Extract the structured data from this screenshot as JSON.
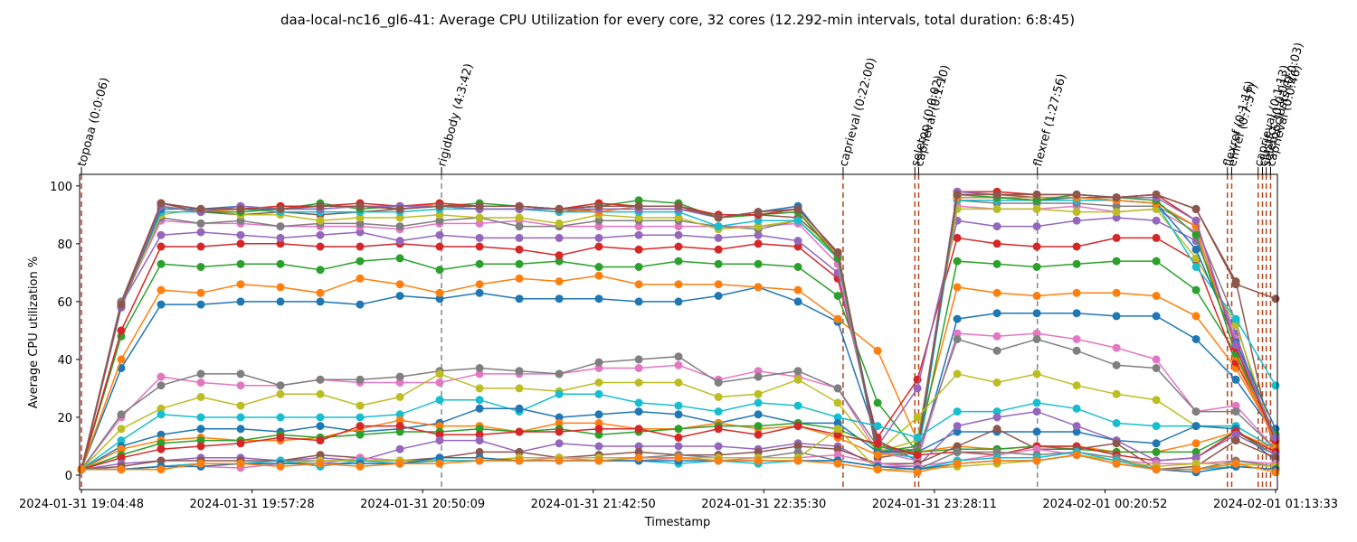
{
  "chart_data": {
    "type": "line",
    "title": "daa-local-nc16_gl6-41: Average CPU Utilization for every core, 32 cores (12.292-min intervals, total duration: 6:8:45)",
    "xlabel": "Timestamp",
    "ylabel": "Average CPU utilization %",
    "ylim": [
      -5,
      104
    ],
    "y_ticks": [
      0,
      20,
      40,
      60,
      80,
      100
    ],
    "x_ticks": [
      "2024-01-31 19:04:48",
      "2024-01-31 19:57:28",
      "2024-01-31 20:50:09",
      "2024-01-31 21:42:50",
      "2024-01-31 22:35:30",
      "2024-01-31 23:28:11",
      "2024-02-01 00:20:52",
      "2024-02-01 01:13:33"
    ],
    "grid": false,
    "legend": "none",
    "x": [
      "19:04:48",
      "19:17:06",
      "19:29:23",
      "19:41:41",
      "19:53:58",
      "20:06:16",
      "20:18:33",
      "20:30:51",
      "20:43:09",
      "20:55:26",
      "21:07:44",
      "21:20:01",
      "21:32:19",
      "21:44:36",
      "21:56:54",
      "22:09:11",
      "22:21:29",
      "22:33:47",
      "22:46:04",
      "22:58:22",
      "23:10:39",
      "23:22:57",
      "23:35:14",
      "23:47:32",
      "23:59:49",
      "00:12:07",
      "00:24:25",
      "00:36:42",
      "00:49:00",
      "01:01:17",
      "01:13:33"
    ],
    "annotations": [
      {
        "label": "topoaa (0:0:06)",
        "x": "19:04:48",
        "line_color": "#c0392b"
      },
      {
        "label": "rigidbody (4:3:42)",
        "x": "20:56:00",
        "line_color": "#7f8c8d"
      },
      {
        "label": "caprieval (0:22:00)",
        "x": "23:00:00",
        "line_color": "#b5451b"
      },
      {
        "label": "seletop (0:0:02)",
        "x": "23:22:10",
        "line_color": "#b5451b"
      },
      {
        "label": "caprieval (0:1:10)",
        "x": "23:23:20",
        "line_color": "#b5451b"
      },
      {
        "label": "flexref (1:27:56)",
        "x": "00:00:00",
        "line_color": "#7f8c8d"
      },
      {
        "label": "flexref (0:1:16)",
        "x": "00:58:40",
        "line_color": "#b5451b"
      },
      {
        "label": "emref (0:7:57)",
        "x": "01:00:00",
        "line_color": "#b5451b"
      },
      {
        "label": "caprieval (0:1:13)",
        "x": "01:08:10",
        "line_color": "#b5451b"
      },
      {
        "label": "clustfcc (0:0:01)",
        "x": "01:09:30",
        "line_color": "#b5451b"
      },
      {
        "label": "seletopclusts (0:0:03)",
        "x": "01:10:40",
        "line_color": "#b5451b"
      },
      {
        "label": "caprieval (0:0:46)",
        "x": "01:12:00",
        "line_color": "#b5451b"
      }
    ],
    "series": [
      {
        "color": "#1f77b4",
        "values": [
          2,
          37,
          59,
          59,
          60,
          60,
          60,
          59,
          62,
          61,
          63,
          61,
          61,
          61,
          60,
          60,
          62,
          65,
          60,
          53,
          12,
          5,
          54,
          56,
          56,
          56,
          55,
          55,
          47,
          33,
          14
        ]
      },
      {
        "color": "#ff7f0e",
        "values": [
          2,
          40,
          64,
          63,
          66,
          65,
          63,
          68,
          66,
          63,
          66,
          68,
          67,
          69,
          66,
          66,
          66,
          65,
          64,
          54,
          43,
          12,
          65,
          63,
          62,
          63,
          63,
          62,
          55,
          37,
          13
        ]
      },
      {
        "color": "#2ca02c",
        "values": [
          2,
          48,
          73,
          72,
          73,
          73,
          71,
          74,
          75,
          71,
          73,
          73,
          74,
          72,
          72,
          74,
          73,
          73,
          72,
          62,
          25,
          8,
          74,
          73,
          72,
          73,
          74,
          74,
          64,
          42,
          11
        ]
      },
      {
        "color": "#d62728",
        "values": [
          2,
          50,
          79,
          79,
          80,
          80,
          79,
          79,
          80,
          79,
          79,
          78,
          76,
          79,
          78,
          79,
          78,
          80,
          79,
          68,
          13,
          33,
          82,
          80,
          79,
          79,
          82,
          82,
          74,
          39,
          13
        ]
      },
      {
        "color": "#9467bd",
        "values": [
          2,
          59,
          83,
          84,
          83,
          82,
          83,
          84,
          81,
          83,
          82,
          82,
          82,
          82,
          83,
          83,
          82,
          83,
          81,
          70,
          10,
          30,
          88,
          86,
          86,
          88,
          89,
          88,
          81,
          49,
          9
        ]
      },
      {
        "color": "#8c564b",
        "values": [
          2,
          60,
          94,
          91,
          90,
          91,
          90,
          91,
          92,
          93,
          92,
          92,
          91,
          92,
          92,
          92,
          90,
          90,
          89,
          77,
          6,
          8,
          97,
          97,
          96,
          96,
          96,
          97,
          92,
          67,
          6
        ]
      },
      {
        "color": "#e377c2",
        "values": [
          2,
          59,
          88,
          87,
          87,
          86,
          86,
          86,
          85,
          87,
          87,
          88,
          86,
          86,
          86,
          86,
          86,
          86,
          87,
          73,
          8,
          10,
          93,
          92,
          92,
          93,
          91,
          92,
          84,
          47,
          10
        ]
      },
      {
        "color": "#7f7f7f",
        "values": [
          2,
          60,
          89,
          87,
          88,
          86,
          87,
          87,
          86,
          88,
          89,
          86,
          86,
          88,
          88,
          88,
          86,
          85,
          88,
          76,
          9,
          7,
          95,
          94,
          94,
          94,
          93,
          93,
          86,
          53,
          8
        ]
      },
      {
        "color": "#bcbd22",
        "values": [
          2,
          58,
          90,
          92,
          90,
          90,
          88,
          89,
          89,
          90,
          89,
          89,
          87,
          90,
          89,
          89,
          85,
          86,
          88,
          76,
          8,
          12,
          92,
          92,
          92,
          91,
          91,
          92,
          75,
          52,
          12
        ]
      },
      {
        "color": "#17becf",
        "values": [
          2,
          59,
          91,
          91,
          92,
          91,
          91,
          91,
          91,
          92,
          92,
          92,
          91,
          91,
          91,
          91,
          86,
          88,
          88,
          75,
          8,
          6,
          95,
          95,
          95,
          95,
          95,
          94,
          72,
          54,
          31
        ]
      },
      {
        "color": "#1f77b4",
        "values": [
          2,
          58,
          92,
          92,
          93,
          92,
          92,
          93,
          92,
          93,
          92,
          92,
          92,
          93,
          93,
          93,
          89,
          91,
          93,
          76,
          10,
          7,
          96,
          96,
          95,
          96,
          95,
          94,
          78,
          46,
          16
        ]
      },
      {
        "color": "#ff7f0e",
        "values": [
          2,
          59,
          93,
          91,
          92,
          93,
          93,
          93,
          92,
          94,
          93,
          93,
          92,
          91,
          93,
          93,
          89,
          90,
          91,
          76,
          8,
          9,
          96,
          96,
          96,
          96,
          95,
          94,
          86,
          41,
          11
        ]
      },
      {
        "color": "#2ca02c",
        "values": [
          2,
          58,
          93,
          91,
          91,
          92,
          94,
          92,
          93,
          93,
          94,
          93,
          92,
          93,
          95,
          94,
          89,
          90,
          91,
          75,
          8,
          10,
          97,
          96,
          95,
          97,
          96,
          95,
          83,
          42,
          14
        ]
      },
      {
        "color": "#d62728",
        "values": [
          2,
          59,
          94,
          92,
          92,
          93,
          93,
          94,
          93,
          94,
          93,
          93,
          92,
          94,
          93,
          93,
          90,
          90,
          92,
          77,
          8,
          9,
          98,
          98,
          97,
          97,
          96,
          97,
          88,
          44,
          12
        ]
      },
      {
        "color": "#9467bd",
        "values": [
          2,
          58,
          93,
          91,
          93,
          92,
          92,
          93,
          93,
          93,
          92,
          92,
          92,
          92,
          92,
          92,
          89,
          91,
          92,
          77,
          8,
          9,
          98,
          97,
          97,
          97,
          96,
          96,
          88,
          45,
          13
        ]
      },
      {
        "color": "#8c564b",
        "values": [
          2,
          59,
          94,
          92,
          92,
          92,
          93,
          93,
          92,
          93,
          93,
          93,
          92,
          93,
          93,
          93,
          89,
          91,
          92,
          77,
          8,
          8,
          97,
          97,
          97,
          97,
          96,
          97,
          92,
          66,
          61
        ]
      },
      {
        "color": "#e377c2",
        "values": [
          2,
          20,
          34,
          32,
          31,
          31,
          33,
          32,
          32,
          32,
          35,
          35,
          35,
          37,
          37,
          38,
          33,
          36,
          34,
          30,
          8,
          5,
          49,
          48,
          49,
          47,
          44,
          40,
          22,
          24,
          9
        ]
      },
      {
        "color": "#7f7f7f",
        "values": [
          2,
          21,
          31,
          35,
          35,
          31,
          33,
          33,
          34,
          36,
          37,
          36,
          35,
          39,
          40,
          41,
          32,
          34,
          36,
          30,
          10,
          8,
          47,
          43,
          47,
          43,
          38,
          37,
          22,
          22,
          9
        ]
      },
      {
        "color": "#bcbd22",
        "values": [
          2,
          16,
          23,
          27,
          24,
          28,
          28,
          24,
          27,
          35,
          30,
          30,
          29,
          32,
          32,
          32,
          27,
          28,
          33,
          25,
          8,
          20,
          35,
          32,
          35,
          31,
          28,
          26,
          17,
          17,
          9
        ]
      },
      {
        "color": "#17becf",
        "values": [
          2,
          12,
          21,
          20,
          20,
          20,
          20,
          20,
          21,
          26,
          26,
          22,
          28,
          28,
          25,
          24,
          22,
          25,
          24,
          20,
          17,
          13,
          22,
          22,
          25,
          23,
          18,
          17,
          17,
          17,
          9
        ]
      },
      {
        "color": "#1f77b4",
        "values": [
          2,
          10,
          14,
          16,
          16,
          15,
          17,
          15,
          16,
          18,
          23,
          23,
          20,
          21,
          22,
          21,
          18,
          21,
          18,
          18,
          8,
          8,
          15,
          15,
          15,
          15,
          12,
          11,
          17,
          16,
          5
        ]
      },
      {
        "color": "#ff7f0e",
        "values": [
          2,
          9,
          12,
          13,
          12,
          12,
          13,
          16,
          19,
          17,
          17,
          15,
          18,
          18,
          16,
          16,
          18,
          16,
          17,
          13,
          7,
          8,
          10,
          9,
          10,
          10,
          8,
          8,
          11,
          15,
          9
        ]
      },
      {
        "color": "#2ca02c",
        "values": [
          2,
          7,
          11,
          12,
          12,
          14,
          13,
          14,
          15,
          15,
          16,
          15,
          16,
          14,
          15,
          16,
          17,
          17,
          18,
          16,
          10,
          8,
          9,
          9,
          10,
          9,
          8,
          8,
          8,
          15,
          7
        ]
      },
      {
        "color": "#d62728",
        "values": [
          2,
          6,
          9,
          10,
          11,
          13,
          12,
          17,
          17,
          14,
          14,
          15,
          15,
          16,
          16,
          13,
          16,
          14,
          17,
          14,
          11,
          7,
          8,
          7,
          10,
          10,
          7,
          5,
          6,
          15,
          8
        ]
      },
      {
        "color": "#9467bd",
        "values": [
          2,
          4,
          5,
          6,
          6,
          5,
          6,
          5,
          9,
          12,
          12,
          8,
          11,
          10,
          10,
          10,
          10,
          9,
          11,
          10,
          3,
          3,
          17,
          20,
          22,
          17,
          12,
          5,
          6,
          14,
          7
        ]
      },
      {
        "color": "#8c564b",
        "values": [
          2,
          3,
          5,
          5,
          5,
          5,
          7,
          6,
          5,
          6,
          8,
          8,
          6,
          7,
          8,
          7,
          7,
          8,
          10,
          9,
          4,
          4,
          10,
          16,
          9,
          9,
          11,
          2,
          3,
          12,
          6
        ]
      },
      {
        "color": "#e377c2",
        "values": [
          2,
          2,
          3,
          3,
          2.5,
          4,
          4,
          6,
          5,
          5,
          5,
          5,
          6,
          5,
          5,
          6,
          5,
          6,
          6,
          7,
          4,
          3,
          5,
          7,
          9,
          7,
          5,
          4,
          4,
          5,
          4
        ]
      },
      {
        "color": "#7f7f7f",
        "values": [
          2,
          2,
          3,
          4,
          4,
          5,
          5,
          5,
          5,
          5,
          5,
          6,
          6,
          6,
          6,
          7,
          6,
          6,
          8,
          5,
          3,
          2,
          8,
          8,
          7,
          8,
          6,
          2,
          2,
          5,
          3
        ]
      },
      {
        "color": "#bcbd22",
        "values": [
          2,
          2,
          2,
          4,
          4,
          4,
          5,
          5,
          5,
          5,
          5,
          6,
          6,
          6,
          6,
          6,
          6,
          6,
          6,
          16,
          2,
          2,
          3,
          4,
          5,
          7,
          5,
          3,
          4,
          4,
          3
        ]
      },
      {
        "color": "#17becf",
        "values": [
          2,
          2,
          3,
          4,
          4,
          5,
          3,
          5,
          4,
          5,
          5,
          5,
          5,
          5,
          5,
          4,
          5,
          4,
          5,
          5,
          3,
          2,
          5,
          6,
          6,
          8,
          5,
          2,
          2,
          3,
          2
        ]
      },
      {
        "color": "#1f77b4",
        "values": [
          2,
          2,
          3,
          3,
          4,
          4,
          4,
          4,
          4,
          6,
          6,
          5,
          5,
          5,
          5,
          5,
          5,
          5,
          5,
          5,
          3,
          2,
          4,
          5,
          5,
          7,
          4,
          2,
          1,
          3,
          2
        ]
      },
      {
        "color": "#ff7f0e",
        "values": [
          2,
          2,
          2,
          4,
          4,
          3,
          4,
          3,
          4,
          4,
          5,
          5,
          5,
          5,
          6,
          6,
          5,
          5,
          5,
          4,
          2,
          1,
          4,
          5,
          5,
          7,
          4,
          2,
          2,
          4,
          1
        ]
      }
    ]
  }
}
